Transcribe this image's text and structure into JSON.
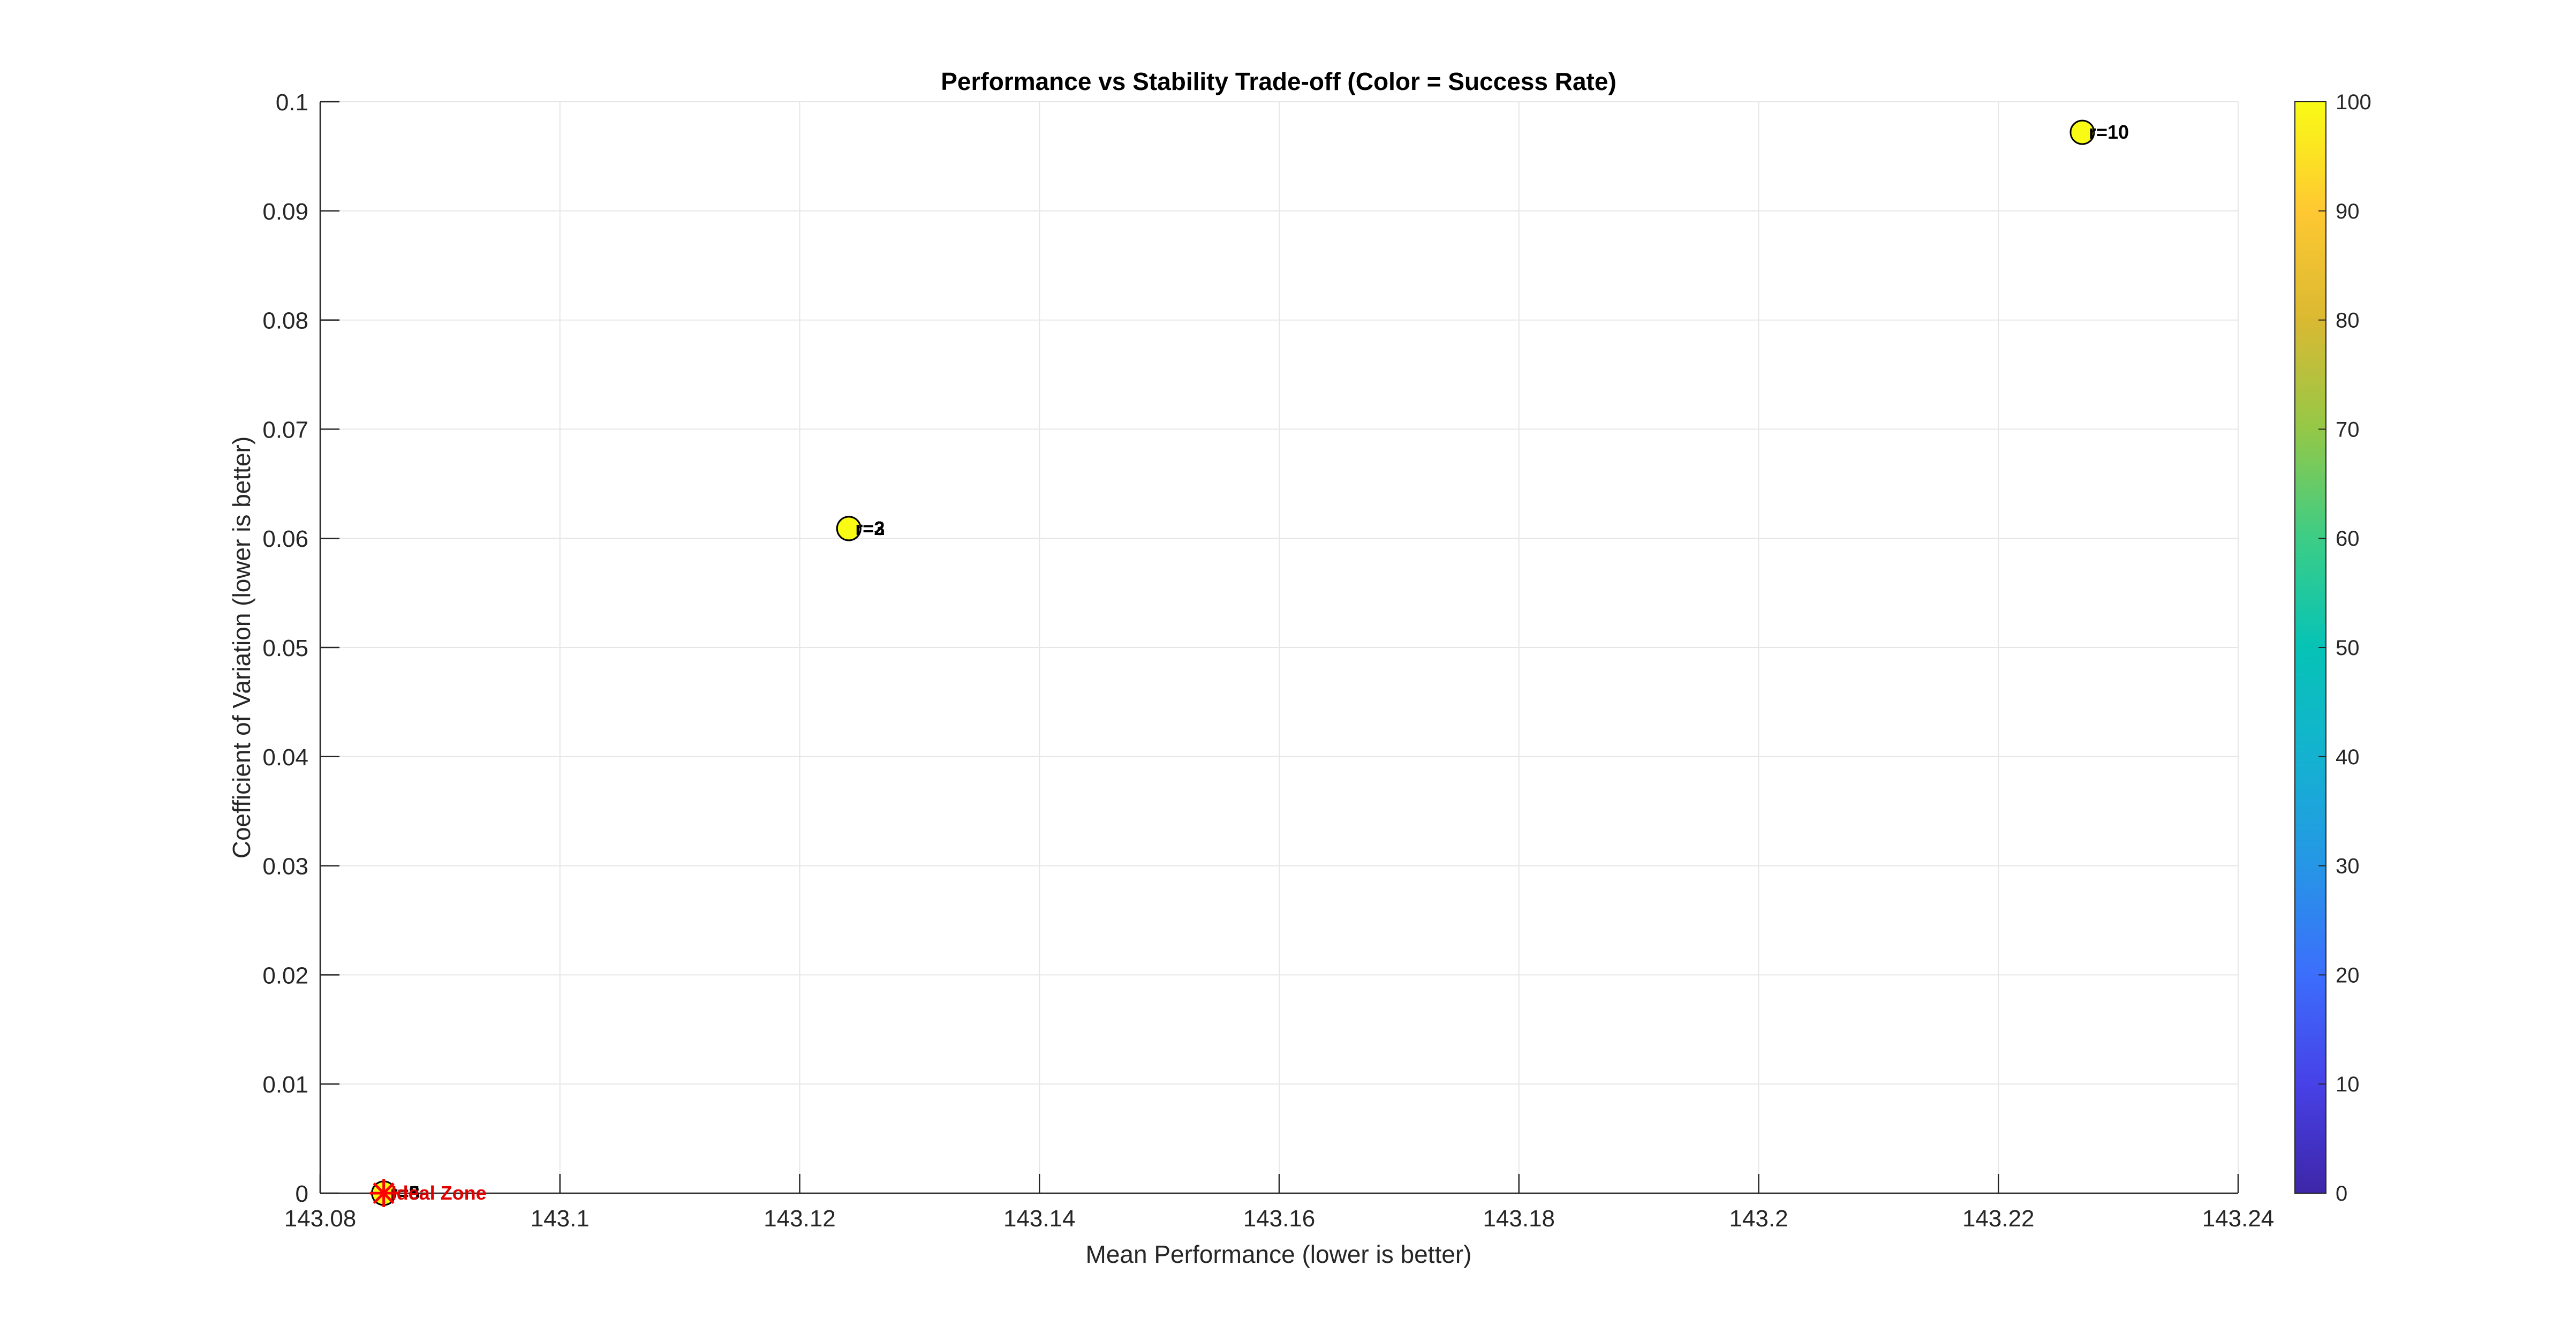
{
  "chart_data": {
    "type": "scatter",
    "title": "Performance vs Stability Trade-off (Color = Success Rate)",
    "xlabel": "Mean Performance (lower is better)",
    "ylabel": "Coefficient of Variation (lower is better)",
    "xlim": [
      143.08,
      143.24
    ],
    "ylim": [
      0,
      0.1
    ],
    "x_ticks": [
      143.08,
      143.1,
      143.12,
      143.14,
      143.16,
      143.18,
      143.2,
      143.22,
      143.24
    ],
    "x_tick_labels": [
      "143.08",
      "143.1",
      "143.12",
      "143.14",
      "143.16",
      "143.18",
      "143.2",
      "143.22",
      "143.24"
    ],
    "y_ticks": [
      0,
      0.01,
      0.02,
      0.03,
      0.04,
      0.05,
      0.06,
      0.07,
      0.08,
      0.09,
      0.1
    ],
    "y_tick_labels": [
      "0",
      "0.01",
      "0.02",
      "0.03",
      "0.04",
      "0.05",
      "0.06",
      "0.07",
      "0.08",
      "0.09",
      "0.1"
    ],
    "grid": true,
    "colorbar": {
      "min": 0,
      "max": 100,
      "ticks": [
        0,
        10,
        20,
        30,
        40,
        50,
        60,
        70,
        80,
        90,
        100
      ],
      "tick_labels": [
        "0",
        "10",
        "20",
        "30",
        "40",
        "50",
        "60",
        "70",
        "80",
        "90",
        "100"
      ],
      "colormap": "parula"
    },
    "points": [
      {
        "label": "r=5",
        "x": 143.0853,
        "y": 0.0,
        "success_rate": 100
      },
      {
        "label": "r=8",
        "x": 143.0853,
        "y": 0.0,
        "success_rate": 100
      },
      {
        "label": "r=2",
        "x": 143.1241,
        "y": 0.0609,
        "success_rate": 100
      },
      {
        "label": "r=3",
        "x": 143.1241,
        "y": 0.0609,
        "success_rate": 100
      },
      {
        "label": "r=10",
        "x": 143.227,
        "y": 0.0972,
        "success_rate": 100
      }
    ],
    "annotations": [
      {
        "text": "Ideal Zone",
        "x": 143.0853,
        "y": 0.0,
        "marker": "asterisk",
        "color": "#ff0000"
      }
    ]
  }
}
